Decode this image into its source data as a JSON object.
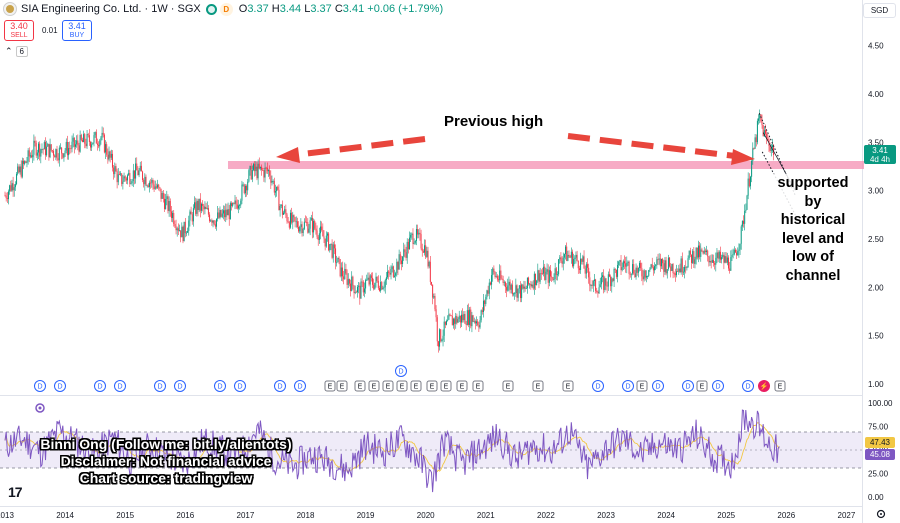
{
  "header": {
    "title": "SIA Engineering Co. Ltd. · 1W · SGX",
    "delayed_badge": "D",
    "ohlc": {
      "o_label": "O",
      "o": "3.37",
      "h_label": "H",
      "h": "3.44",
      "l_label": "L",
      "l": "3.37",
      "c_label": "C",
      "c": "3.41",
      "change": "+0.06 (+1.79%)"
    },
    "sell_price": "3.40",
    "sell_label": "SELL",
    "spread": "0.01",
    "buy_price": "3.41",
    "buy_label": "BUY",
    "indicators_count": "6",
    "currency": "SGD",
    "status_colors": {
      "green": "#089981",
      "red": "#f23645",
      "blue": "#2962ff"
    }
  },
  "price_tag": {
    "price": "3.41",
    "countdown": "4d 4h"
  },
  "rsi_tags": {
    "ma": "47.43",
    "rsi": "45.08"
  },
  "annotations": {
    "previous_high": "Previous high",
    "support_lines": [
      "supported",
      "by",
      "historical",
      "level and",
      "low of",
      "channel"
    ]
  },
  "credits": {
    "line1": "Binni Ong (Follow me: bit.ly/alientots)",
    "line2": "Disclaimer: Not financial advice",
    "line3": "Chart source: tradingview"
  },
  "brand": {
    "logo_text": "17"
  },
  "chart_data": [
    {
      "type": "candlestick",
      "title": "SIA Engineering Co. Ltd. · 1W · SGX",
      "y_axis": {
        "ticks": [
          "4.50",
          "4.00",
          "3.50",
          "3.00",
          "2.50",
          "2.00",
          "1.50",
          "1.00"
        ],
        "range": [
          0.95,
          4.75
        ]
      },
      "x_axis": {
        "ticks": [
          "2013",
          "2014",
          "2015",
          "2016",
          "2017",
          "2018",
          "2019",
          "2020",
          "2021",
          "2022",
          "2023",
          "2024",
          "2025",
          "2026",
          "2027"
        ]
      },
      "x": [
        2013.0,
        2013.5,
        2013.9,
        2014.3,
        2014.6,
        2014.9,
        2015.2,
        2015.5,
        2015.75,
        2015.95,
        2016.2,
        2016.5,
        2016.8,
        2017.1,
        2017.4,
        2017.6,
        2017.8,
        2018.1,
        2018.4,
        2018.6,
        2018.9,
        2019.0,
        2019.3,
        2019.6,
        2019.8,
        2020.0,
        2020.15,
        2020.2,
        2020.4,
        2020.7,
        2020.9,
        2021.1,
        2021.3,
        2021.6,
        2021.9,
        2022.1,
        2022.3,
        2022.6,
        2022.8,
        2023.0,
        2023.3,
        2023.6,
        2023.9,
        2024.2,
        2024.5,
        2024.8,
        2025.1,
        2025.25,
        2025.4,
        2025.55,
        2025.65,
        2025.8
      ],
      "values": [
        2.95,
        3.45,
        3.4,
        3.5,
        3.55,
        3.1,
        3.2,
        3.05,
        2.8,
        2.55,
        2.85,
        2.7,
        2.8,
        3.2,
        3.2,
        2.8,
        2.65,
        2.65,
        2.45,
        2.15,
        1.95,
        2.05,
        2.05,
        2.3,
        2.55,
        2.4,
        1.85,
        1.45,
        1.65,
        1.7,
        1.65,
        2.15,
        2.05,
        1.95,
        2.15,
        2.1,
        2.35,
        2.25,
        2.0,
        2.05,
        2.25,
        2.15,
        2.25,
        2.2,
        2.35,
        2.3,
        2.25,
        2.55,
        3.2,
        3.75,
        3.55,
        3.41
      ],
      "previous_high_level": 3.25,
      "channel": {
        "upper_start": [
          2025.55,
          3.8
        ],
        "upper_end": [
          2026.15,
          2.95
        ],
        "lower_start": [
          2025.6,
          3.4
        ],
        "lower_end": [
          2026.15,
          2.75
        ]
      }
    },
    {
      "type": "line",
      "title": "RSI",
      "y_axis": {
        "ticks": [
          "100.00",
          "75.00",
          "50.00",
          "25.00",
          "0.00"
        ],
        "range": [
          0,
          100
        ]
      },
      "band": [
        30,
        70
      ],
      "series": [
        {
          "values_note_only": "",
          "x": [
            2013.0,
            2013.3,
            2013.6,
            2013.9,
            2014.2,
            2014.5,
            2014.8,
            2015.1,
            2015.4,
            2015.7,
            2016.0,
            2016.3,
            2016.6,
            2016.9,
            2017.2,
            2017.5,
            2017.8,
            2018.1,
            2018.4,
            2018.7,
            2019.0,
            2019.3,
            2019.6,
            2019.9,
            2020.1,
            2020.3,
            2020.6,
            2020.9,
            2021.2,
            2021.5,
            2021.8,
            2022.1,
            2022.4,
            2022.7,
            2023.0,
            2023.3,
            2023.6,
            2023.9,
            2024.2,
            2024.5,
            2024.8,
            2025.1,
            2025.3,
            2025.5,
            2025.7,
            2025.9
          ],
          "values": [
            55,
            62,
            48,
            70,
            58,
            45,
            64,
            38,
            55,
            42,
            35,
            60,
            50,
            45,
            72,
            40,
            32,
            45,
            38,
            28,
            55,
            48,
            62,
            40,
            15,
            60,
            35,
            50,
            65,
            40,
            55,
            48,
            70,
            30,
            52,
            62,
            45,
            58,
            50,
            66,
            42,
            35,
            85,
            78,
            58,
            45
          ]
        }
      ]
    }
  ],
  "event_markers": {
    "row1": [
      "D",
      "D",
      "D",
      "D",
      "D",
      "D",
      "D",
      "D",
      "D",
      "D",
      "E",
      "E",
      "E",
      "E",
      "E",
      "E",
      "E",
      "E",
      "E",
      "E",
      "E",
      "E",
      "E",
      "E",
      "D",
      "D",
      "E",
      "D",
      "D",
      "E",
      "D",
      "D",
      "⚡",
      "E"
    ],
    "floating": "D"
  }
}
